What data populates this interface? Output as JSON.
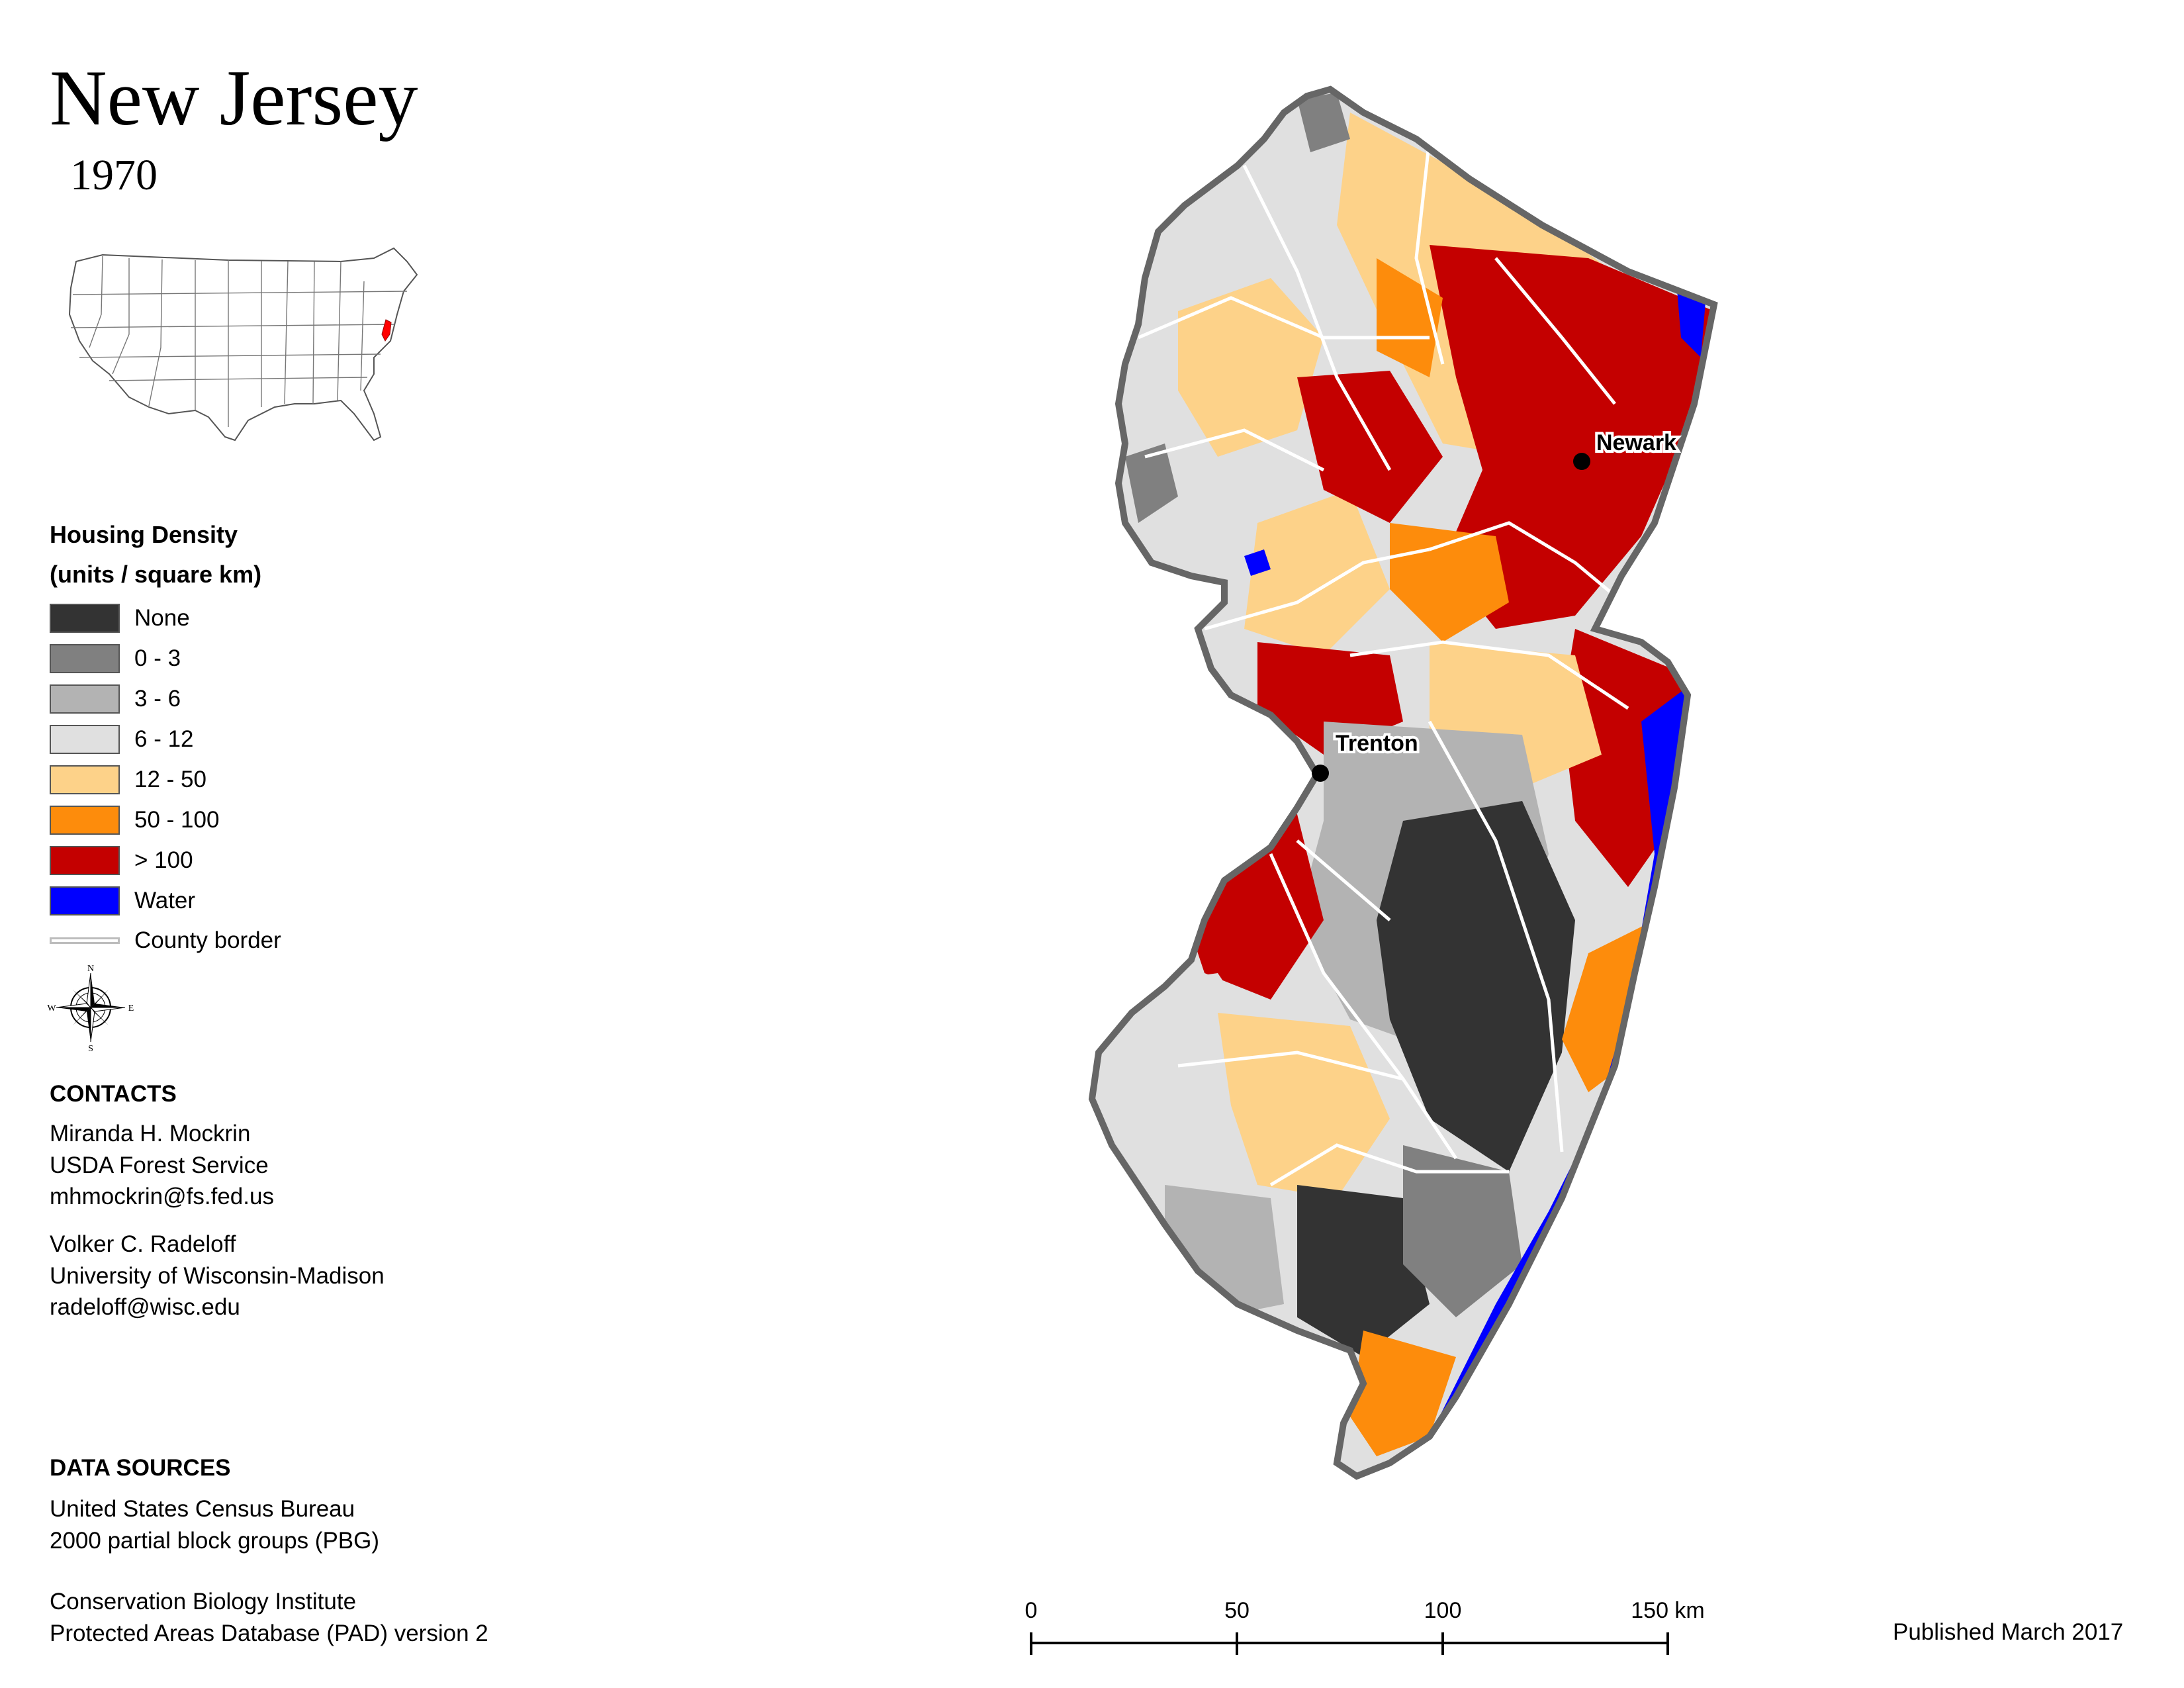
{
  "title": "New Jersey",
  "year": "1970",
  "legend": {
    "heading_line1": "Housing Density",
    "heading_line2": "(units / square km)",
    "items": [
      {
        "label": "None",
        "color": "#333333"
      },
      {
        "label": "0 - 3",
        "color": "#808080"
      },
      {
        "label": "3 - 6",
        "color": "#b3b3b3"
      },
      {
        "label": "6 - 12",
        "color": "#e0e0e0"
      },
      {
        "label": "12 - 50",
        "color": "#fdd289"
      },
      {
        "label": "50 - 100",
        "color": "#fd8c0c"
      },
      {
        "label": "> 100",
        "color": "#c40000"
      },
      {
        "label": "Water",
        "color": "#0000ff"
      }
    ],
    "county_border_label": "County border"
  },
  "compass": {
    "n": "N",
    "s": "S",
    "e": "E",
    "w": "W"
  },
  "cities": [
    {
      "name": "Newark"
    },
    {
      "name": "Trenton"
    }
  ],
  "contacts": {
    "heading": "CONTACTS",
    "people": [
      {
        "name": "Miranda H. Mockrin",
        "org": "USDA Forest Service",
        "email": "mhmockrin@fs.fed.us"
      },
      {
        "name": "Volker C. Radeloff",
        "org": "University of Wisconsin-Madison",
        "email": "radeloff@wisc.edu"
      }
    ]
  },
  "data_sources": {
    "heading": "DATA SOURCES",
    "line1": "United States Census Bureau",
    "line2": "2000 partial block groups (PBG)",
    "line3": "Conservation Biology Institute",
    "line4": "Protected Areas Database (PAD) version 2"
  },
  "scale": {
    "ticks": [
      "0",
      "50",
      "100",
      "150 km"
    ]
  },
  "published": "Published March 2017"
}
